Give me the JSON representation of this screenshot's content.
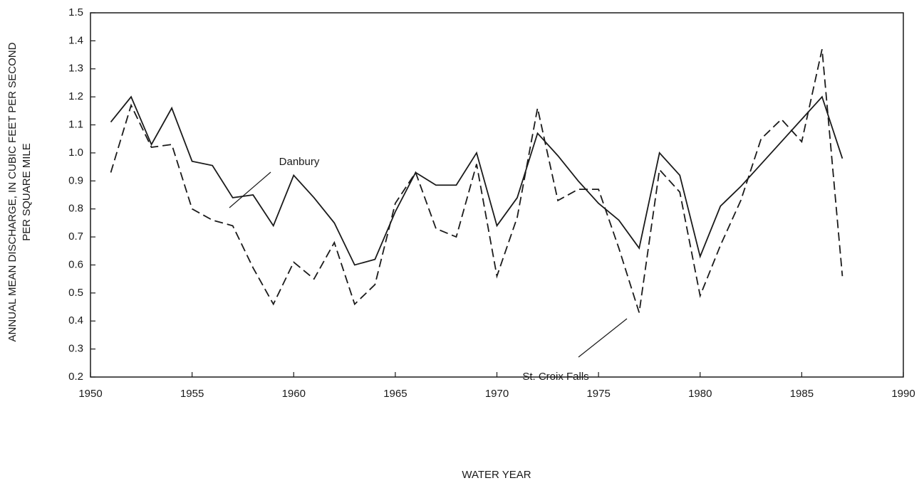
{
  "chart_data": {
    "type": "line",
    "xlabel": "WATER YEAR",
    "ylabel": [
      "ANNUAL MEAN DISCHARGE, IN CUBIC FEET PER SECOND",
      "PER SQUARE MILE"
    ],
    "x": [
      1951,
      1952,
      1953,
      1954,
      1955,
      1956,
      1957,
      1958,
      1959,
      1960,
      1961,
      1962,
      1963,
      1964,
      1965,
      1966,
      1967,
      1968,
      1969,
      1970,
      1971,
      1972,
      1973,
      1974,
      1975,
      1976,
      1977,
      1978,
      1979,
      1980,
      1981,
      1982,
      1983,
      1984,
      1985,
      1986,
      1987
    ],
    "series": [
      {
        "name": "Danbury",
        "color": "#1a1a1a",
        "dashed": false,
        "values": [
          1.11,
          1.2,
          1.03,
          1.16,
          0.97,
          0.955,
          0.84,
          0.85,
          0.74,
          0.92,
          0.84,
          0.75,
          0.6,
          0.62,
          0.79,
          0.93,
          0.885,
          0.885,
          1.0,
          0.74,
          0.84,
          1.07,
          0.99,
          0.9,
          0.82,
          0.76,
          0.66,
          1.0,
          0.92,
          0.63,
          0.81,
          0.88,
          0.96,
          1.04,
          1.12,
          1.2,
          0.98
        ]
      },
      {
        "name": "St. Croix Falls",
        "color": "#1a1a1a",
        "dashed": true,
        "values": [
          0.93,
          1.17,
          1.02,
          1.03,
          0.8,
          0.76,
          0.74,
          0.59,
          0.46,
          0.61,
          0.55,
          0.68,
          0.46,
          0.53,
          0.82,
          0.93,
          0.73,
          0.7,
          0.96,
          0.56,
          0.77,
          1.16,
          0.83,
          0.87,
          0.87,
          0.66,
          0.43,
          0.94,
          0.86,
          0.49,
          0.67,
          0.83,
          1.05,
          1.12,
          1.04,
          1.37,
          0.56
        ]
      }
    ],
    "xlim": [
      1950,
      1990
    ],
    "xticks": [
      1950,
      1955,
      1960,
      1965,
      1970,
      1975,
      1980,
      1985,
      1990
    ],
    "ylim": [
      0.2,
      1.5
    ],
    "yticks": [
      0.2,
      0.3,
      0.4,
      0.5,
      0.6,
      0.7,
      0.8,
      0.9,
      {
        "value": 1,
        "label": "1.0"
      },
      1.1,
      1.2,
      1.3,
      1.4,
      1.5
    ],
    "grid": false
  }
}
